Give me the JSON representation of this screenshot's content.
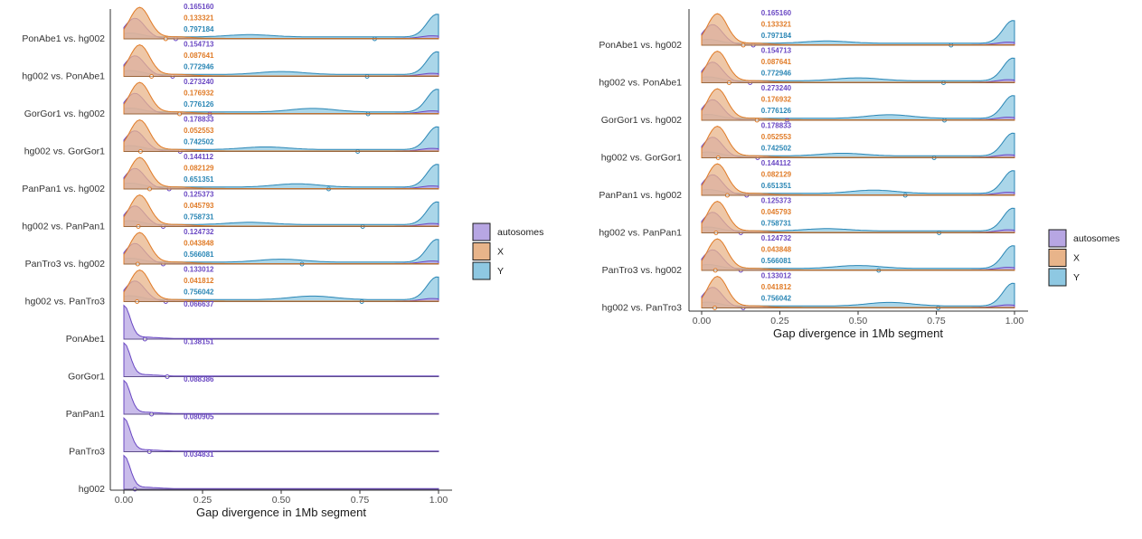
{
  "colors": {
    "autosomes": "#6a48c3",
    "X": "#e07b27",
    "Y": "#2a86b5"
  },
  "fills": {
    "autosomes": "#b7a6e3",
    "X": "#e8b48a",
    "Y": "#8ec8e2"
  },
  "chart_data": [
    {
      "type": "density-ridgeline",
      "xlabel": "Gap divergence in 1Mb segment",
      "xlim": [
        0,
        1
      ],
      "xticks": [
        "0.00",
        "0.25",
        "0.50",
        "0.75",
        "1.00"
      ],
      "legend": [
        {
          "key": "autosomes",
          "label": "autosomes"
        },
        {
          "key": "X",
          "label": "X"
        },
        {
          "key": "Y",
          "label": "Y"
        }
      ],
      "legend_position": "right",
      "rows": [
        {
          "label": "PonAbe1 vs. hg002",
          "values": {
            "autosomes": "0.165160",
            "X": "0.133321",
            "Y": "0.797184"
          },
          "means": {
            "autosomes": 0.165,
            "X": 0.133,
            "Y": 0.797
          }
        },
        {
          "label": "hg002 vs. PonAbe1",
          "values": {
            "autosomes": "0.154713",
            "X": "0.087641",
            "Y": "0.772946"
          },
          "means": {
            "autosomes": 0.155,
            "X": 0.088,
            "Y": 0.773
          }
        },
        {
          "label": "GorGor1 vs. hg002",
          "values": {
            "autosomes": "0.273240",
            "X": "0.176932",
            "Y": "0.776126"
          },
          "means": {
            "autosomes": 0.273,
            "X": 0.177,
            "Y": 0.776
          }
        },
        {
          "label": "hg002 vs. GorGor1",
          "values": {
            "autosomes": "0.178833",
            "X": "0.052553",
            "Y": "0.742502"
          },
          "means": {
            "autosomes": 0.179,
            "X": 0.053,
            "Y": 0.743
          }
        },
        {
          "label": "PanPan1 vs. hg002",
          "values": {
            "autosomes": "0.144112",
            "X": "0.082129",
            "Y": "0.651351"
          },
          "means": {
            "autosomes": 0.144,
            "X": 0.082,
            "Y": 0.651
          }
        },
        {
          "label": "hg002 vs. PanPan1",
          "values": {
            "autosomes": "0.125373",
            "X": "0.045793",
            "Y": "0.758731"
          },
          "means": {
            "autosomes": 0.125,
            "X": 0.046,
            "Y": 0.759
          }
        },
        {
          "label": "PanTro3 vs. hg002",
          "values": {
            "autosomes": "0.124732",
            "X": "0.043848",
            "Y": "0.566081"
          },
          "means": {
            "autosomes": 0.125,
            "X": 0.044,
            "Y": 0.566
          }
        },
        {
          "label": "hg002 vs. PanTro3",
          "values": {
            "autosomes": "0.133012",
            "X": "0.041812",
            "Y": "0.756042"
          },
          "means": {
            "autosomes": 0.133,
            "X": 0.042,
            "Y": 0.756
          }
        },
        {
          "label": "PonAbe1",
          "values": {
            "autosomes": "0.066637"
          },
          "means": {
            "autosomes": 0.067
          }
        },
        {
          "label": "GorGor1",
          "values": {
            "autosomes": "0.138151"
          },
          "means": {
            "autosomes": 0.138
          }
        },
        {
          "label": "PanPan1",
          "values": {
            "autosomes": "0.088386"
          },
          "means": {
            "autosomes": 0.088
          }
        },
        {
          "label": "PanTro3",
          "values": {
            "autosomes": "0.080905"
          },
          "means": {
            "autosomes": 0.081
          }
        },
        {
          "label": "hg002",
          "values": {
            "autosomes": "0.034831"
          },
          "means": {
            "autosomes": 0.035
          }
        }
      ]
    },
    {
      "type": "density-ridgeline",
      "xlabel": "Gap divergence in 1Mb segment",
      "xlim": [
        0,
        1
      ],
      "xticks": [
        "0.00",
        "0.25",
        "0.50",
        "0.75",
        "1.00"
      ],
      "legend": [
        {
          "key": "autosomes",
          "label": "autosomes"
        },
        {
          "key": "X",
          "label": "X"
        },
        {
          "key": "Y",
          "label": "Y"
        }
      ],
      "legend_position": "right",
      "rows": [
        {
          "label": "PonAbe1 vs. hg002",
          "values": {
            "autosomes": "0.165160",
            "X": "0.133321",
            "Y": "0.797184"
          },
          "means": {
            "autosomes": 0.165,
            "X": 0.133,
            "Y": 0.797
          }
        },
        {
          "label": "hg002 vs. PonAbe1",
          "values": {
            "autosomes": "0.154713",
            "X": "0.087641",
            "Y": "0.772946"
          },
          "means": {
            "autosomes": 0.155,
            "X": 0.088,
            "Y": 0.773
          }
        },
        {
          "label": "GorGor1 vs. hg002",
          "values": {
            "autosomes": "0.273240",
            "X": "0.176932",
            "Y": "0.776126"
          },
          "means": {
            "autosomes": 0.273,
            "X": 0.177,
            "Y": 0.776
          }
        },
        {
          "label": "hg002 vs. GorGor1",
          "values": {
            "autosomes": "0.178833",
            "X": "0.052553",
            "Y": "0.742502"
          },
          "means": {
            "autosomes": 0.179,
            "X": 0.053,
            "Y": 0.743
          }
        },
        {
          "label": "PanPan1 vs. hg002",
          "values": {
            "autosomes": "0.144112",
            "X": "0.082129",
            "Y": "0.651351"
          },
          "means": {
            "autosomes": 0.144,
            "X": 0.082,
            "Y": 0.651
          }
        },
        {
          "label": "hg002 vs. PanPan1",
          "values": {
            "autosomes": "0.125373",
            "X": "0.045793",
            "Y": "0.758731"
          },
          "means": {
            "autosomes": 0.125,
            "X": 0.046,
            "Y": 0.759
          }
        },
        {
          "label": "PanTro3 vs. hg002",
          "values": {
            "autosomes": "0.124732",
            "X": "0.043848",
            "Y": "0.566081"
          },
          "means": {
            "autosomes": 0.125,
            "X": 0.044,
            "Y": 0.566
          }
        },
        {
          "label": "hg002 vs. PanTro3",
          "values": {
            "autosomes": "0.133012",
            "X": "0.041812",
            "Y": "0.756042"
          },
          "means": {
            "autosomes": 0.133,
            "X": 0.042,
            "Y": 0.756
          }
        }
      ]
    }
  ]
}
